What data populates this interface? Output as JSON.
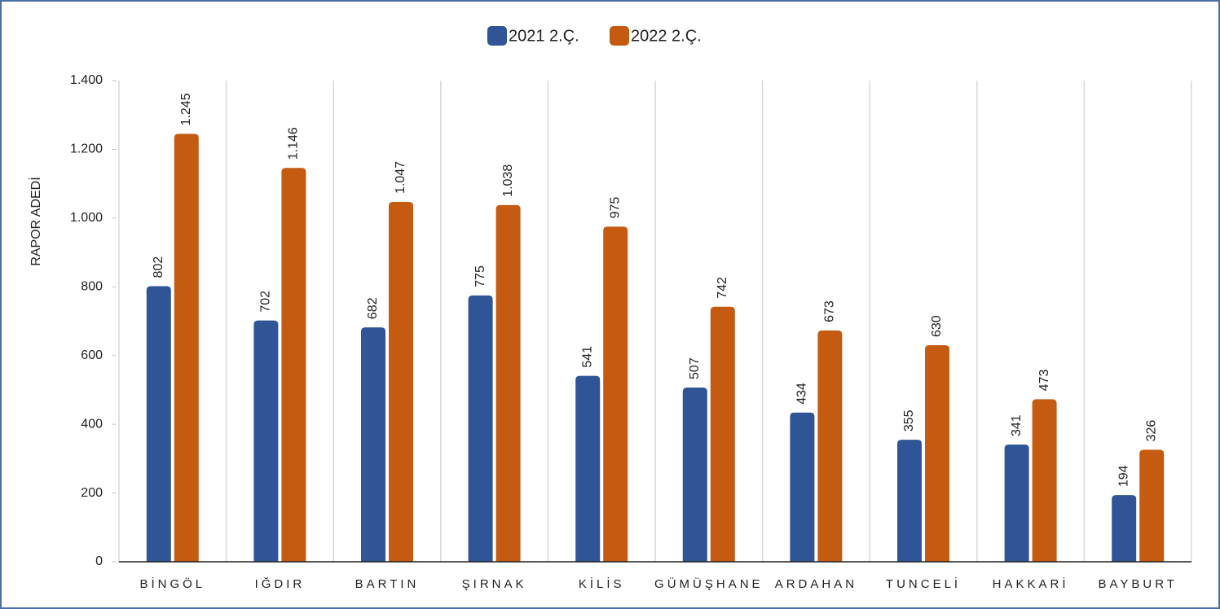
{
  "chart_data": {
    "type": "bar",
    "y_label": "RAPOR ADEDİ",
    "categories": [
      "BİNGÖL",
      "IĞDIR",
      "BARTIN",
      "ŞIRNAK",
      "KİLİS",
      "GÜMÜŞHANE",
      "ARDAHAN",
      "TUNCELİ",
      "HAKKARİ",
      "BAYBURT"
    ],
    "series": [
      {
        "name": "2021 2.Ç.",
        "color": "#2f5597",
        "values": [
          802,
          702,
          682,
          775,
          541,
          507,
          434,
          355,
          341,
          194
        ]
      },
      {
        "name": "2022 2.Ç.",
        "color": "#c55a11",
        "values": [
          1245,
          1146,
          1047,
          1038,
          975,
          742,
          673,
          630,
          473,
          326
        ],
        "value_labels": [
          "1.245",
          "1.146",
          "1.047",
          "1.038",
          "975",
          "742",
          "673",
          "630",
          "473",
          "326"
        ]
      }
    ],
    "ylim": [
      0,
      1400
    ],
    "yticks": [
      0,
      200,
      400,
      600,
      800,
      {
        "value": 1000,
        "label": "1.000"
      },
      {
        "value": 1200,
        "label": "1.200"
      },
      {
        "value": 1400,
        "label": "1.400"
      }
    ],
    "legend": "top"
  }
}
